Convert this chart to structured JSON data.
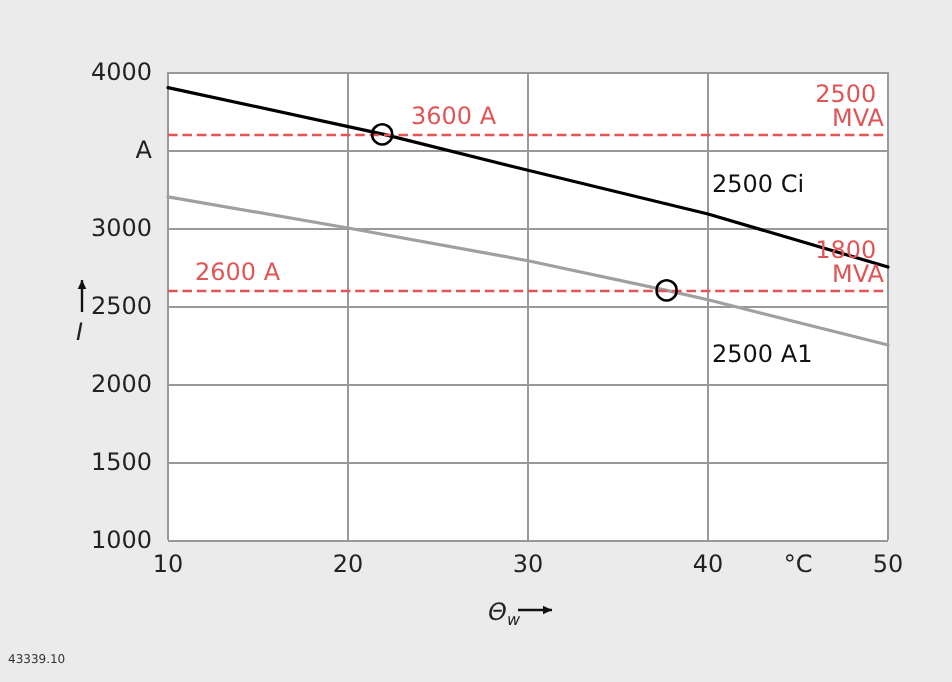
{
  "chart_data": {
    "type": "line",
    "xlabel": "Θ$_{w}$",
    "ylabel": "I",
    "xlim": [
      10,
      50
    ],
    "xticks": [
      10,
      20,
      30,
      40,
      {
        "value": 45,
        "label": "°C"
      },
      50
    ],
    "ylim": [
      1000,
      4000
    ],
    "yticks": [
      1000,
      1500,
      2000,
      2500,
      3000,
      {
        "value": 3500,
        "label": "A"
      },
      4000
    ],
    "grid": true,
    "legend": false,
    "marker": "none",
    "line_style": "solid",
    "series": [
      {
        "name": "2500 Ci",
        "color": "#000000",
        "x": [
          10,
          22,
          30,
          40,
          50
        ],
        "values": [
          3900,
          3600,
          3370,
          3090,
          2750
        ]
      },
      {
        "name": "2500 A1",
        "color": "#a0a0a0",
        "x": [
          10,
          20,
          30,
          37.7,
          40,
          50
        ],
        "values": [
          3200,
          3000,
          2790,
          2600,
          2540,
          2250
        ]
      },
      {
        "type": "scatter",
        "marker": "circle",
        "color": "#000000",
        "x": [
          21.9,
          37.7
        ],
        "values": [
          3600,
          2600
        ]
      }
    ],
    "ref_lines": [
      {
        "axis": "y",
        "value": 3600,
        "label": "3600 A",
        "color": "#e05555",
        "line_style": "dashed"
      },
      {
        "axis": "y",
        "value": 2600,
        "label": "2600 A",
        "color": "#e05555",
        "line_style": "dashed"
      }
    ],
    "annotations": [
      {
        "text": "2500 MVA",
        "x": 50,
        "y": 3600
      },
      {
        "text": "1800 MVA",
        "x": 50,
        "y": 2600
      },
      "43339.10"
    ]
  }
}
